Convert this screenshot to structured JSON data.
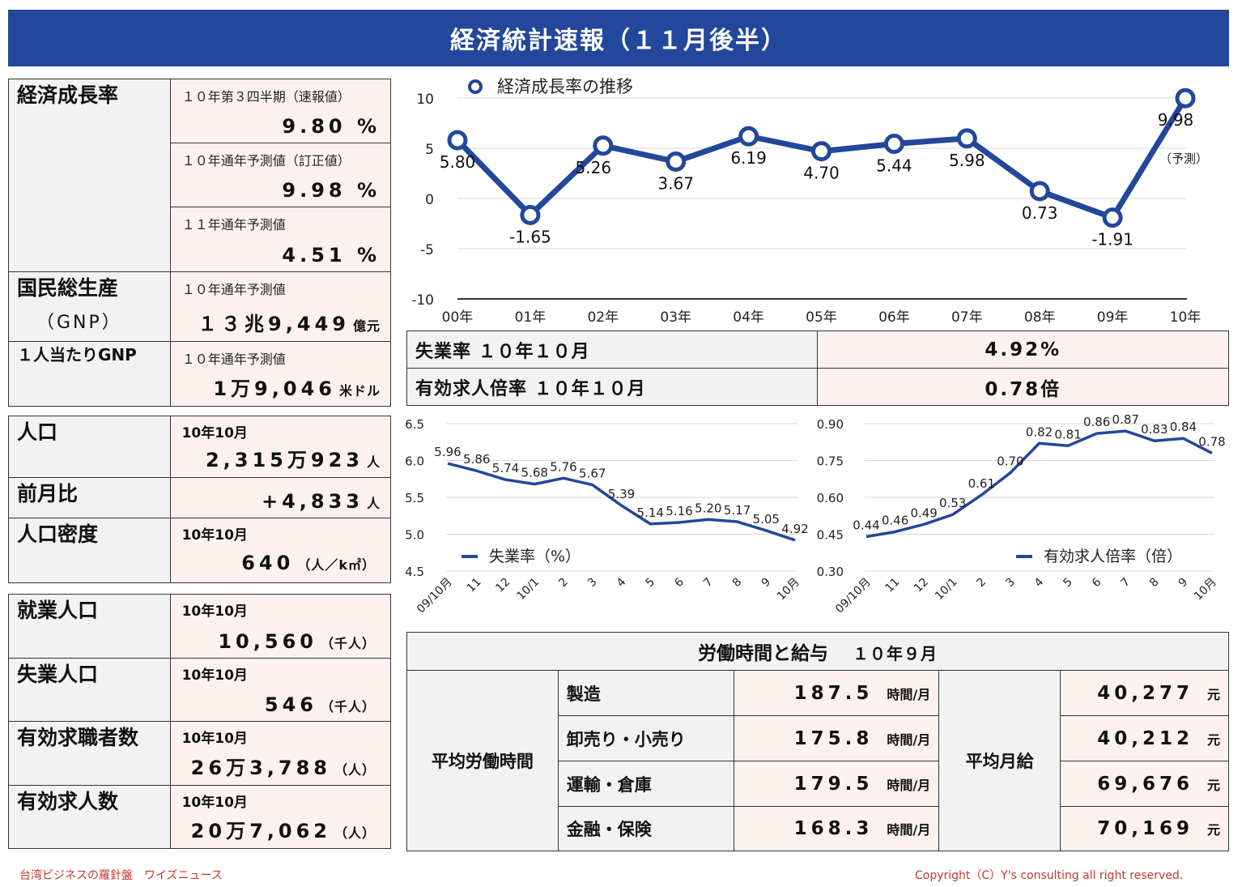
{
  "header": {
    "title": "経済統計速報（１１月後半）"
  },
  "growth": {
    "label": "経済成長率",
    "items": [
      {
        "sub": "１０年第３四半期（速報値）",
        "value": "9.80",
        "unit": "%"
      },
      {
        "sub": "１０年通年予測値（訂正値）",
        "value": "9.98",
        "unit": "%"
      },
      {
        "sub": "１１年通年予測値",
        "value": "4.51",
        "unit": "%"
      }
    ]
  },
  "gnp": {
    "label": "国民総生産",
    "label_sub": "（GNP）",
    "sub": "１０年通年予測値",
    "value": "１３兆9,449",
    "unit": "億元"
  },
  "gnp_per": {
    "label": "１人当たりGNP",
    "sub": "１０年通年予測値",
    "value": "1万9,046",
    "unit": "米ドル"
  },
  "population": {
    "rows": [
      {
        "label": "人口",
        "sub": "10年10月",
        "value": "2,315万923",
        "unit": "人"
      },
      {
        "label": "前月比",
        "sub": "",
        "value": "+4,833",
        "unit": "人"
      },
      {
        "label": "人口密度",
        "sub": "10年10月",
        "value": "640",
        "unit": "（人／k㎡）"
      }
    ]
  },
  "employment": {
    "rows": [
      {
        "label": "就業人口",
        "sub": "10年10月",
        "value": "10,560",
        "unit": "（千人）"
      },
      {
        "label": "失業人口",
        "sub": "10年10月",
        "value": "546",
        "unit": "（千人）"
      },
      {
        "label": "有効求職者数",
        "sub": "10年10月",
        "value": "26万3,788",
        "unit": "（人）"
      },
      {
        "label": "有効求人数",
        "sub": "10年10月",
        "value": "20万7,062",
        "unit": "（人）"
      }
    ]
  },
  "unemployment_box": {
    "rows": [
      {
        "label": "失業率 １０年１０月",
        "value": "4.92%"
      },
      {
        "label": "有効求人倍率 １０年１０月",
        "value": "0.78倍"
      }
    ]
  },
  "labor": {
    "title": "労働時間と給与",
    "date": "１０年９月",
    "hours_label": "平均労働時間",
    "wage_label": "平均月給",
    "hours_unit": "時間/月",
    "wage_unit": "元",
    "rows": [
      {
        "industry": "製造",
        "hours": "187.5",
        "wage": "40,277"
      },
      {
        "industry": "卸売り・小売り",
        "hours": "175.8",
        "wage": "40,212"
      },
      {
        "industry": "運輸・倉庫",
        "hours": "179.5",
        "wage": "69,676"
      },
      {
        "industry": "金融・保険",
        "hours": "168.3",
        "wage": "70,169"
      }
    ]
  },
  "footer": {
    "left": "台湾ビジネスの羅針盤　ワイズニュース",
    "right": "Copyright（C）Y's consulting all right reserved."
  },
  "colors": {
    "header_bg": "#23479a",
    "line": "#23479a",
    "label_bg": "#f2f2f2",
    "value_bg": "#fdf1f0",
    "footer": "#c0392b"
  },
  "chart_data": [
    {
      "type": "line",
      "title": "",
      "legend": "経済成長率の推移",
      "legend_position": "top-left",
      "categories": [
        "00年",
        "01年",
        "02年",
        "03年",
        "04年",
        "05年",
        "06年",
        "07年",
        "08年",
        "09年",
        "10年"
      ],
      "values": [
        5.8,
        -1.65,
        5.26,
        3.67,
        6.19,
        4.7,
        5.44,
        5.98,
        0.73,
        -1.91,
        9.98
      ],
      "labels": [
        "5.80",
        "-1.65",
        "5.26",
        "3.67",
        "6.19",
        "4.70",
        "5.44",
        "5.98",
        "0.73",
        "-1.91",
        "9.98"
      ],
      "annotation": "（予測）",
      "ylim": [
        -10,
        10
      ],
      "yticks": [
        10,
        5,
        0,
        -5,
        -10
      ],
      "grid": true
    },
    {
      "type": "line",
      "legend": "失業率（%）",
      "legend_position": "bottom-left",
      "categories": [
        "09/10月",
        "11",
        "12",
        "10/1",
        "2",
        "3",
        "4",
        "5",
        "6",
        "7",
        "8",
        "9",
        "10月"
      ],
      "values": [
        5.96,
        5.86,
        5.74,
        5.68,
        5.76,
        5.67,
        5.39,
        5.14,
        5.16,
        5.2,
        5.17,
        5.05,
        4.92
      ],
      "labels": [
        "5.96",
        "5.86",
        "5.74",
        "5.68",
        "5.76",
        "5.67",
        "5.39",
        "5.14",
        "5.16",
        "5.20",
        "5.17",
        "5.05",
        "4.92"
      ],
      "ylim": [
        4.5,
        6.5
      ],
      "yticks": [
        "6.5",
        "6.0",
        "5.5",
        "5.0",
        "4.5"
      ],
      "grid": true
    },
    {
      "type": "line",
      "legend": "有効求人倍率（倍）",
      "legend_position": "bottom-right",
      "categories": [
        "09/10月",
        "11",
        "12",
        "10/1",
        "2",
        "3",
        "4",
        "5",
        "6",
        "7",
        "8",
        "9",
        "10月"
      ],
      "values": [
        0.44,
        0.46,
        0.49,
        0.53,
        0.61,
        0.7,
        0.82,
        0.81,
        0.86,
        0.87,
        0.83,
        0.84,
        0.78
      ],
      "labels": [
        "0.44",
        "0.46",
        "0.49",
        "0.53",
        "0.61",
        "0.70",
        "0.82",
        "0.81",
        "0.86",
        "0.87",
        "0.83",
        "0.84",
        "0.78"
      ],
      "ylim": [
        0.3,
        0.9
      ],
      "yticks": [
        "0.90",
        "0.75",
        "0.60",
        "0.45",
        "0.30"
      ],
      "grid": true
    }
  ]
}
